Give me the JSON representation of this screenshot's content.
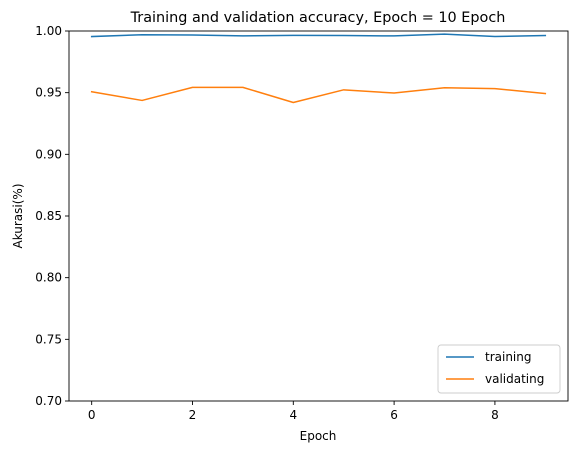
{
  "chart_data": {
    "type": "line",
    "title": "Training and validation accuracy, Epoch =  10 Epoch",
    "xlabel": "Epoch",
    "ylabel": "Akurasi(%)",
    "xlim": [
      -0.45,
      9.45
    ],
    "ylim": [
      0.7,
      1.0
    ],
    "xticks": [
      0,
      2,
      4,
      6,
      8
    ],
    "yticks": [
      0.7,
      0.75,
      0.8,
      0.85,
      0.9,
      0.95,
      1.0
    ],
    "xtick_labels": [
      "0",
      "2",
      "4",
      "6",
      "8"
    ],
    "ytick_labels": [
      "0.70",
      "0.75",
      "0.80",
      "0.85",
      "0.90",
      "0.95",
      "1.00"
    ],
    "x": [
      0,
      1,
      2,
      3,
      4,
      5,
      6,
      7,
      8,
      9
    ],
    "series": [
      {
        "name": "training",
        "color": "#1f77b4",
        "values": [
          0.9955,
          0.997,
          0.9968,
          0.996,
          0.9965,
          0.9963,
          0.996,
          0.9975,
          0.9955,
          0.9963
        ]
      },
      {
        "name": "validating",
        "color": "#ff7f0e",
        "values": [
          0.9507,
          0.9437,
          0.9543,
          0.9543,
          0.942,
          0.9523,
          0.9497,
          0.954,
          0.9533,
          0.9493
        ]
      }
    ],
    "grid": false,
    "legend_position": "lower right"
  }
}
